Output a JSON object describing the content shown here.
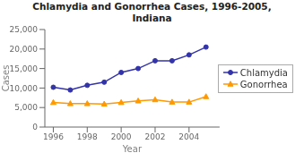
{
  "chart_data": {
    "type": "line",
    "title": "Chlamydia and Gonorrhea Cases, 1996-2005,\nIndiana",
    "xlabel": "Year",
    "ylabel": "Cases",
    "x": [
      1996,
      1997,
      1998,
      1999,
      2000,
      2001,
      2002,
      2003,
      2004,
      2005
    ],
    "series": [
      {
        "name": "Chlamydia",
        "color": "#3333aa",
        "marker": "circle",
        "values": [
          10200,
          9500,
          10700,
          11500,
          14000,
          15000,
          17000,
          17000,
          18500,
          20500
        ]
      },
      {
        "name": "Gonorrhea",
        "color": "#ff9900",
        "marker": "triangle",
        "values": [
          6300,
          6000,
          6000,
          5900,
          6300,
          6700,
          7000,
          6400,
          6400,
          7800
        ]
      }
    ],
    "xlim": [
      1995.5,
      2005.8
    ],
    "xticks": [
      1996,
      1998,
      2000,
      2002,
      2004
    ],
    "ylim": [
      0,
      25000
    ],
    "yticks": [
      0,
      {
        "value": 5000,
        "label": "5,000"
      },
      {
        "value": 10000,
        "label": "10,000"
      },
      {
        "value": 15000,
        "label": "15,000"
      },
      {
        "value": 20000,
        "label": "20,000"
      },
      {
        "value": 25000,
        "label": "25,000"
      }
    ],
    "grid": false,
    "legend": "right"
  }
}
